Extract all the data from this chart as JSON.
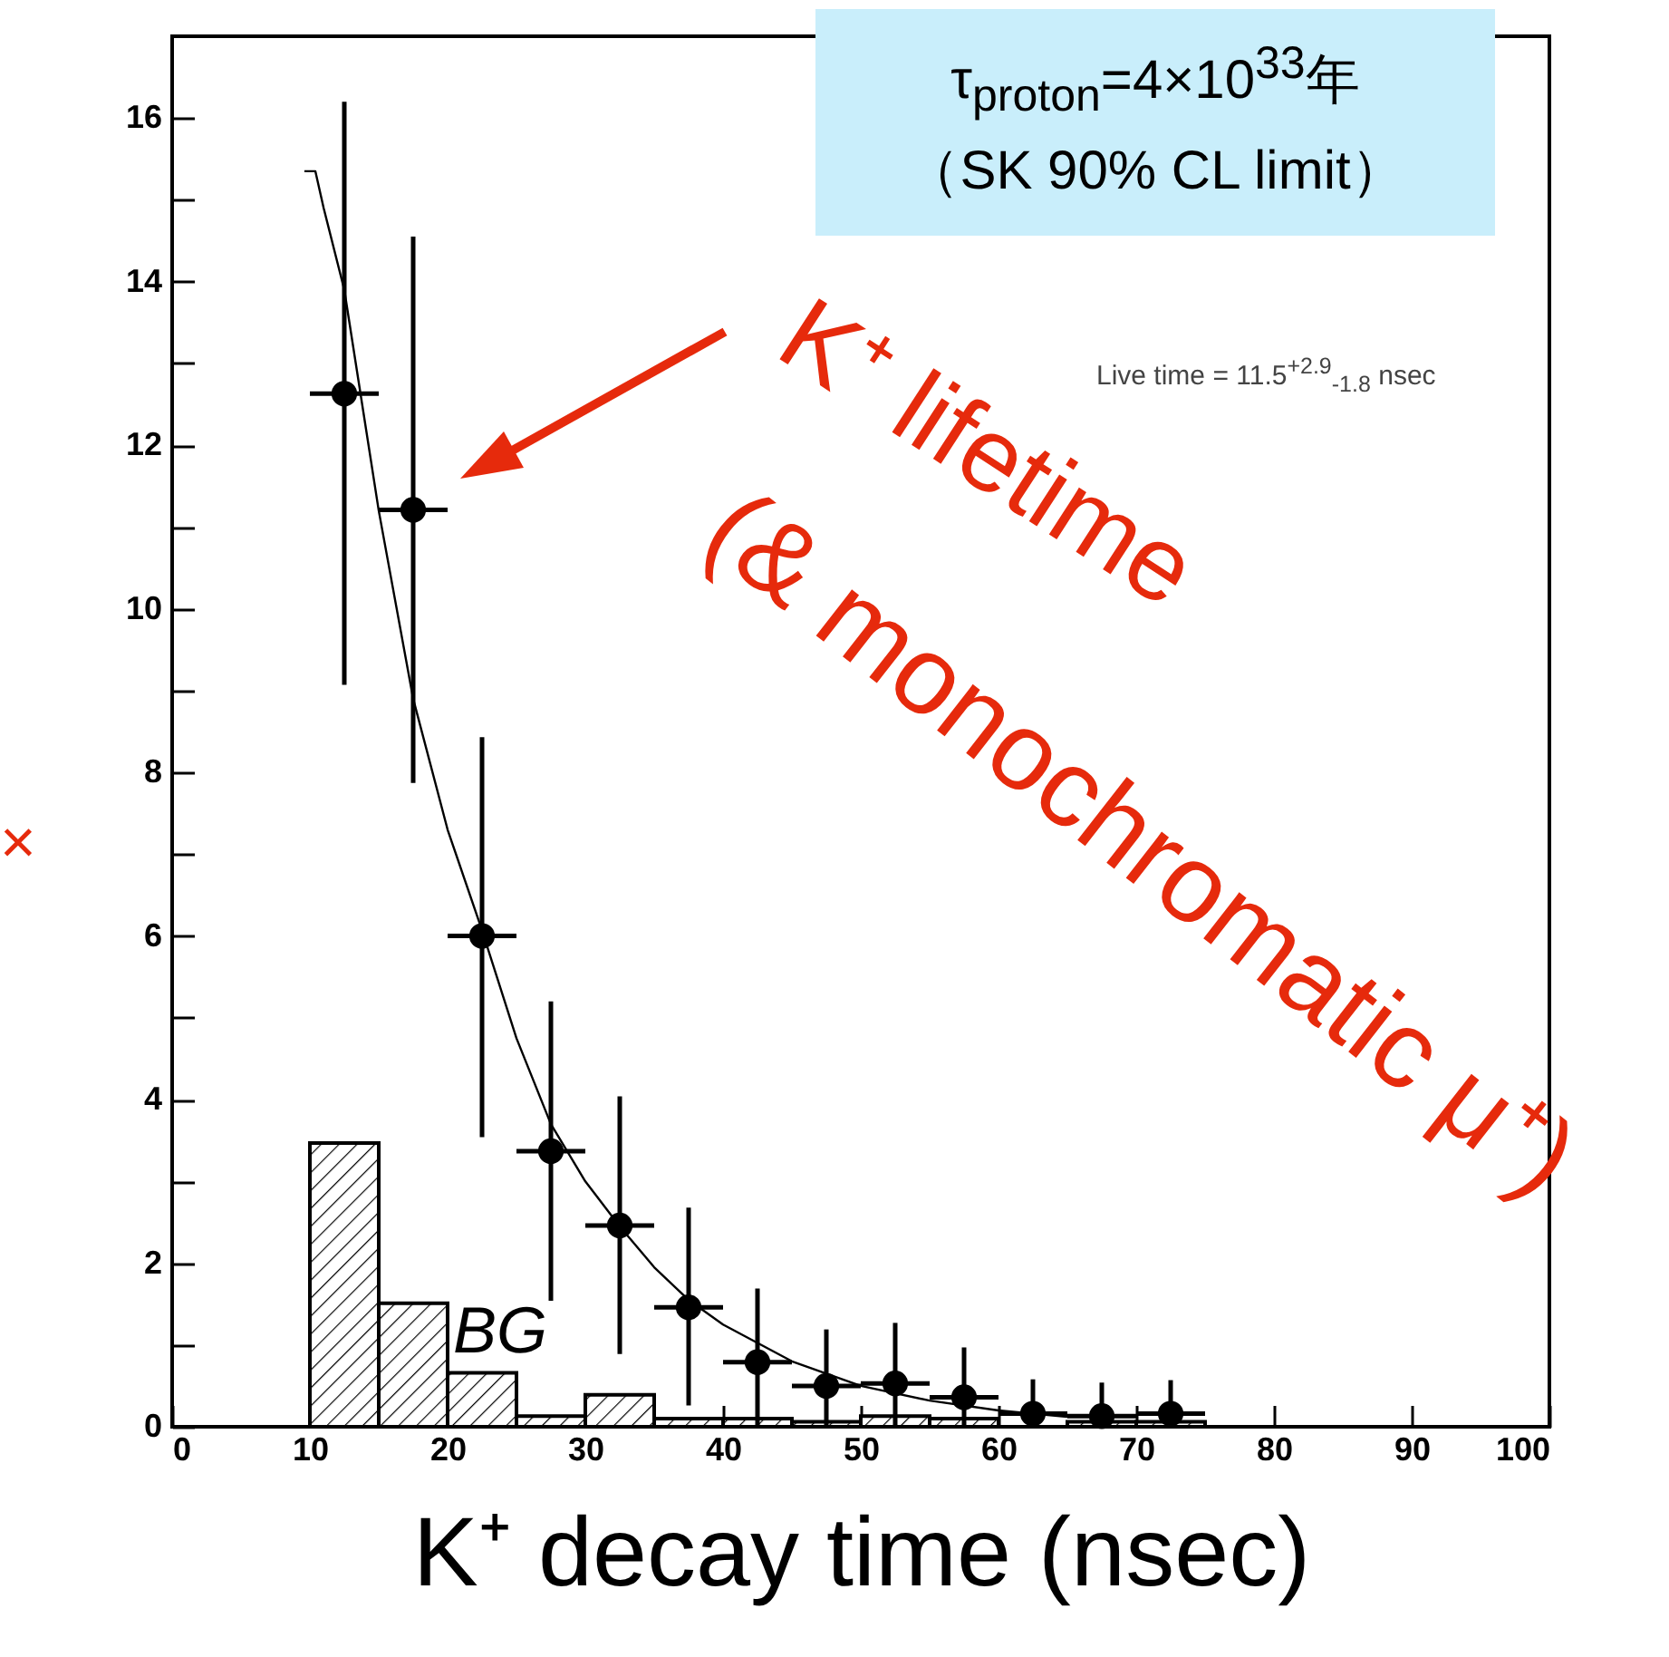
{
  "chart_data": {
    "type": "scatter",
    "xlabel": "K⁺ decay time (nsec)",
    "xlim": [
      0,
      100
    ],
    "ylim": [
      0,
      17
    ],
    "xticks": [
      0,
      10,
      20,
      30,
      40,
      50,
      60,
      70,
      80,
      90,
      100
    ],
    "yticks": [
      0,
      {
        "value": 1,
        "label": null
      },
      2,
      {
        "value": 3,
        "label": null
      },
      4,
      {
        "value": 5,
        "label": null
      },
      6,
      {
        "value": 7,
        "label": null
      },
      8,
      {
        "value": 9,
        "label": null
      },
      10,
      {
        "value": 11,
        "label": null
      },
      12,
      {
        "value": 13,
        "label": null
      },
      14,
      {
        "value": 15,
        "label": null
      },
      16
    ],
    "annotations": [
      "τ$_{proton}$=4×10$^{33}$年",
      "（SK 90% CL limit）",
      "Live time = 11.5$^{+2.9}$$_{-1.8}$ nsec",
      "K⁺ lifetime",
      "(& monochromatic μ⁺)",
      "BG",
      "×"
    ],
    "series": [
      {
        "type": "histogram",
        "color": "#000000",
        "bins": [
          10,
          15,
          20,
          25,
          30,
          35,
          40,
          45,
          50,
          55,
          60,
          65,
          70,
          75
        ],
        "values": [
          3.47,
          1.51,
          0.66,
          0.13,
          0.39,
          0.1,
          0.1,
          0.06,
          0.13,
          0.1,
          0,
          0.06,
          0.06
        ]
      },
      {
        "type": "line",
        "color": "#000000",
        "x": [
          9.6,
          10.4,
          11,
          12.5,
          15,
          17.5,
          20,
          22.5,
          25,
          27.5,
          30,
          32.5,
          35,
          37.5,
          40,
          45,
          50,
          55,
          60,
          65
        ],
        "values": [
          15.35,
          15.35,
          14.9,
          13.9,
          11.2,
          8.9,
          7.3,
          6.07,
          4.75,
          3.7,
          3.0,
          2.45,
          1.95,
          1.55,
          1.25,
          0.8,
          0.5,
          0.32,
          0.2,
          0.12
        ]
      },
      {
        "color": "#000000",
        "marker": "circle",
        "x": [
          12.5,
          17.5,
          22.5,
          27.5,
          32.5,
          37.5,
          42.5,
          47.5,
          52.5,
          57.5,
          62.5,
          67.5,
          72.5
        ],
        "values": [
          12.63,
          11.21,
          6.0,
          3.37,
          2.46,
          1.46,
          0.79,
          0.5,
          0.53,
          0.36,
          0.16,
          0.13,
          0.16
        ],
        "errors": [
          [
            9.07,
            16.2
          ],
          [
            7.87,
            14.55
          ],
          [
            3.54,
            8.43
          ],
          [
            1.54,
            5.2
          ],
          [
            0.89,
            4.04
          ],
          [
            0.26,
            2.68
          ],
          [
            0,
            1.69
          ],
          [
            0,
            1.19
          ],
          [
            0,
            1.27
          ],
          [
            0,
            0.97
          ],
          [
            0,
            0.58
          ],
          [
            0,
            0.54
          ],
          [
            0,
            0.57
          ]
        ],
        "xerrors": [
          2.5,
          2.5,
          2.5,
          2.5,
          2.5,
          2.5,
          2.5,
          2.5,
          2.5,
          2.5,
          2.5,
          2.5,
          2.5
        ]
      }
    ]
  }
}
